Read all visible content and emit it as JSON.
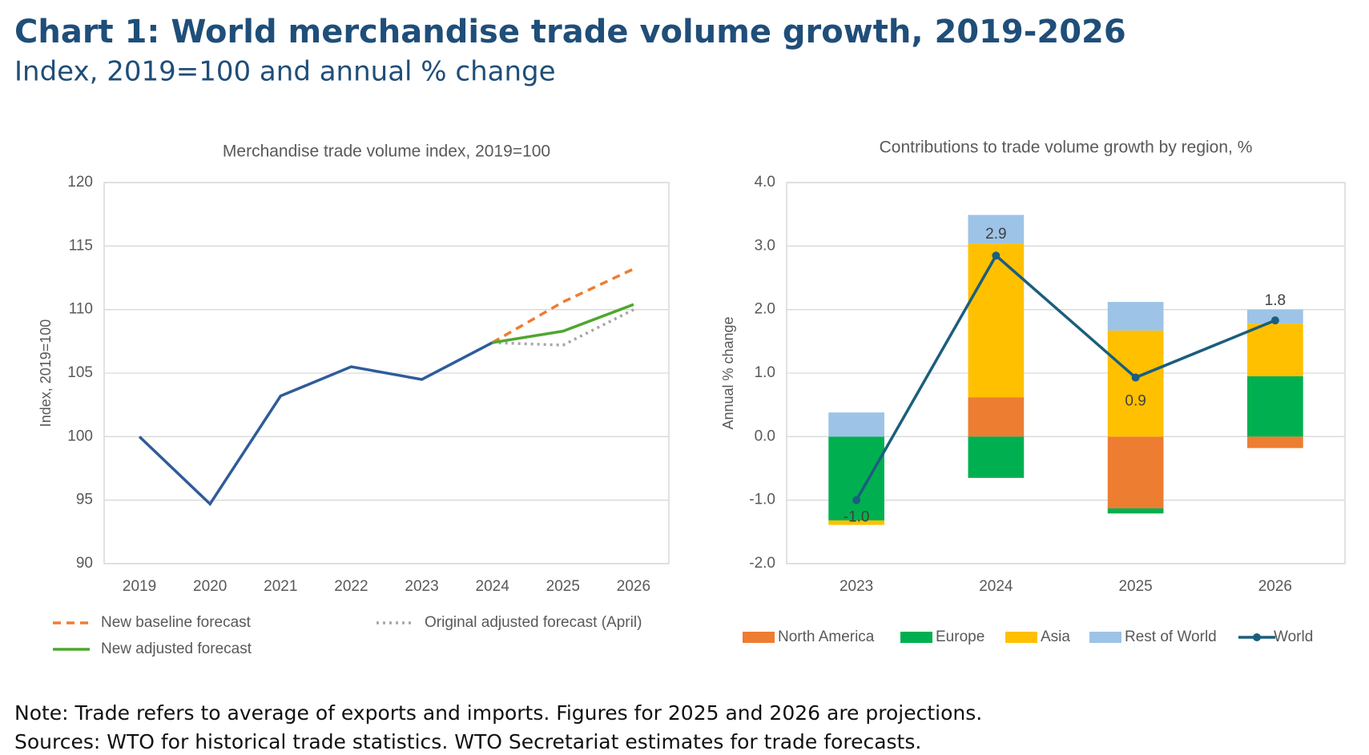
{
  "title": "Chart 1: World merchandise trade volume growth, 2019-2026",
  "subtitle": "Index, 2019=100 and annual % change",
  "notes": [
    "Note: Trade refers to average of exports and imports. Figures for 2025 and 2026 are projections.",
    "Sources: WTO for historical trade statistics. WTO Secretariat estimates for trade forecasts."
  ],
  "chart_data": [
    {
      "type": "line",
      "title": "Merchandise trade volume index, 2019=100",
      "y_label": "Index, 2019=100",
      "categories": [
        "2019",
        "2020",
        "2021",
        "2022",
        "2023",
        "2024",
        "2025",
        "2026"
      ],
      "ylim": [
        90,
        120
      ],
      "yticks": [
        90,
        95,
        100,
        105,
        110,
        115,
        120
      ],
      "grid": true,
      "series": [
        {
          "color": "#2e5c9a",
          "style": "solid",
          "values": [
            100,
            94.7,
            103.2,
            105.5,
            104.5,
            107.4,
            null,
            null
          ]
        },
        {
          "name": "New baseline forecast",
          "color": "#ed7d31",
          "style": "dashed",
          "values": [
            null,
            null,
            null,
            null,
            null,
            107.4,
            110.6,
            113.2
          ]
        },
        {
          "name": "Original adjusted forecast (April)",
          "color": "#a6a6a6",
          "style": "dotted",
          "values": [
            null,
            null,
            null,
            null,
            null,
            107.4,
            107.2,
            110.0
          ]
        },
        {
          "name": "New adjusted forecast",
          "color": "#4ea72e",
          "style": "solid",
          "values": [
            null,
            null,
            null,
            null,
            null,
            107.4,
            108.3,
            110.4
          ]
        }
      ]
    },
    {
      "type": "bar",
      "stacked": true,
      "title": "Contributions to trade volume growth by region, %",
      "y_label": "Annual % change",
      "categories": [
        "2023",
        "2024",
        "2025",
        "2026"
      ],
      "ylim": [
        -2,
        4
      ],
      "yticks": [
        {
          "value": -2,
          "label": "-2.0"
        },
        {
          "value": -1,
          "label": "-1.0"
        },
        {
          "value": 0,
          "label": "0.0"
        },
        {
          "value": 1,
          "label": "1.0"
        },
        {
          "value": 2,
          "label": "2.0"
        },
        {
          "value": 3,
          "label": "3.0"
        },
        {
          "value": 4,
          "label": "4.0"
        }
      ],
      "grid": true,
      "series": [
        {
          "name": "North America",
          "color": "#ed7d31",
          "values": [
            0,
            0.62,
            -1.13,
            -0.18
          ]
        },
        {
          "name": "Europe",
          "color": "#00b050",
          "values": [
            -1.32,
            -0.65,
            -0.08,
            0.95
          ]
        },
        {
          "name": "Asia",
          "color": "#ffc000",
          "values": [
            -0.07,
            2.42,
            1.67,
            0.83
          ]
        },
        {
          "name": "Rest of World",
          "color": "#9dc3e6",
          "values": [
            0.38,
            0.45,
            0.45,
            0.22
          ]
        },
        {
          "name": "World",
          "type": "line",
          "color": "#1b5e7e",
          "values": [
            -1.0,
            2.85,
            0.93,
            1.83
          ],
          "value_labels": [
            "-1.0",
            "2.9",
            "0.9",
            "1.8"
          ]
        }
      ]
    }
  ]
}
